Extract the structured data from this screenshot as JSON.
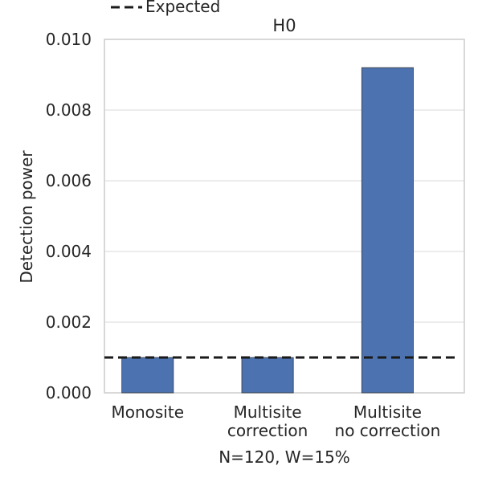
{
  "chart_data": {
    "type": "bar",
    "title": "H0",
    "ylabel": "Detection power",
    "xlabel": "N=120, W=15%",
    "categories": [
      [
        "Monosite"
      ],
      [
        "Multisite",
        "correction"
      ],
      [
        "Multisite",
        "no correction"
      ]
    ],
    "values": [
      0.001,
      0.001,
      0.0092
    ],
    "ylim": [
      0,
      0.01
    ],
    "yticks": [
      "0.000",
      "0.002",
      "0.004",
      "0.006",
      "0.008",
      "0.010"
    ],
    "reference_line": {
      "label": "Expected",
      "value": 0.001,
      "style": "dashed"
    },
    "legend": {
      "position": "top-left",
      "entries": [
        "Expected"
      ]
    },
    "grid": true,
    "colors": {
      "bar": "#4c72b0",
      "bar_edge": "#3a3a3a",
      "grid": "#e5e5e5",
      "axes": "#cccccc",
      "reference": "#1a1a1a"
    }
  }
}
